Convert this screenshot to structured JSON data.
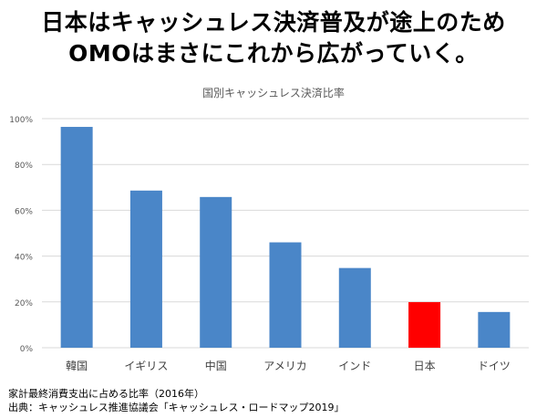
{
  "headline": {
    "line1": "日本はキャッシュレス決済普及が途上のため",
    "line2": "OMOはまさにこれから広がっていく。"
  },
  "chart_data": {
    "type": "bar",
    "title": "国別キャッシュレス決済比率",
    "categories": [
      "韓国",
      "イギリス",
      "中国",
      "アメリカ",
      "インド",
      "日本",
      "ドイツ"
    ],
    "values": [
      96.4,
      68.6,
      65.8,
      46.0,
      34.8,
      19.9,
      15.6
    ],
    "ylim": [
      0,
      100
    ],
    "yticks": [
      "0%",
      "20%",
      "40%",
      "60%",
      "80%",
      "100%"
    ],
    "grid": true,
    "colors": {
      "default": "#4a86c8",
      "highlight": "#ff0000",
      "grid": "#d9d9d9"
    },
    "highlight_category": "日本"
  },
  "footnotes": {
    "line1": "家計最終消費支出に占める比率（2016年）",
    "line2": "出典：キャッシュレス推進協議会「キャッシュレス・ロードマップ2019」"
  }
}
